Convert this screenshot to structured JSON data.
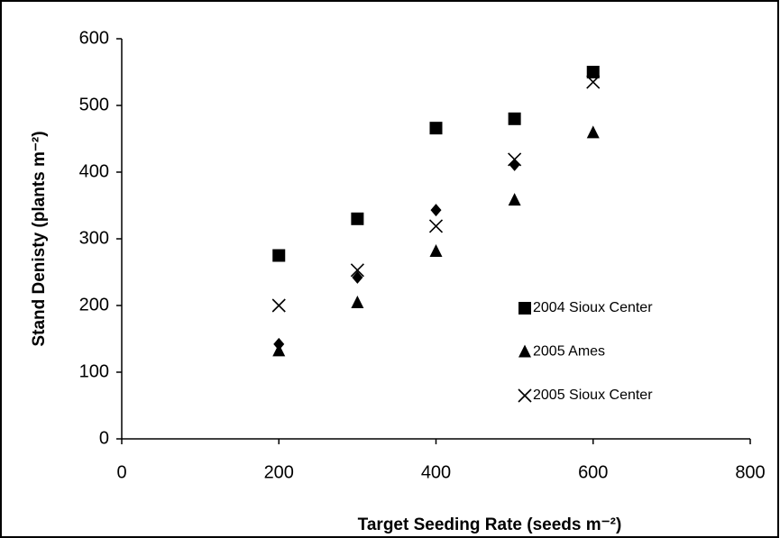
{
  "chart_data": {
    "type": "scatter",
    "x_label": "Target Seeding Rate (seeds m⁻²)",
    "y_label": "Stand Denisty (plants m⁻²)",
    "x": [
      200,
      300,
      400,
      500,
      600
    ],
    "series": [
      {
        "name": "2004 Sioux Center",
        "marker": "square",
        "color": "#000000",
        "values": [
          275,
          330,
          466,
          480,
          550
        ]
      },
      {
        "name": "2005 Ames",
        "marker": "triangle",
        "color": "#000000",
        "values": [
          132,
          204,
          281,
          358,
          459
        ]
      },
      {
        "name": "2005 Sioux Center",
        "marker": "x",
        "color": "#000000",
        "values": [
          200,
          253,
          319,
          419,
          535
        ]
      },
      {
        "marker": "diamond",
        "color": "#000000",
        "values": [
          142,
          242,
          343,
          411,
          550
        ]
      }
    ],
    "xlim": [
      0,
      800
    ],
    "xticks": [
      0,
      200,
      400,
      600,
      800
    ],
    "ylim": [
      0,
      600
    ],
    "yticks": [
      0,
      100,
      200,
      300,
      400,
      500,
      600
    ]
  }
}
